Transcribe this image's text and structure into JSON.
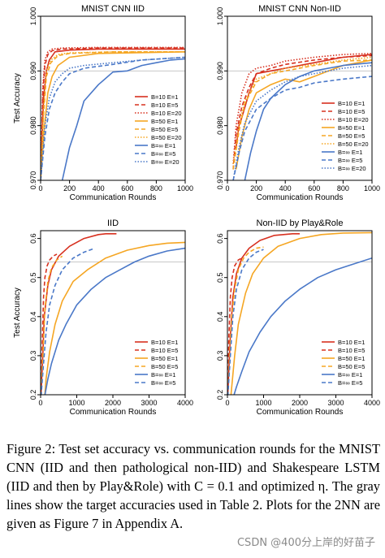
{
  "chart_data": [
    {
      "type": "line",
      "title": "MNIST CNN IID",
      "xlabel": "Communication Rounds",
      "ylabel": "Test Accuracy",
      "xlim": [
        0,
        1000
      ],
      "ylim": [
        0.97,
        1.0
      ],
      "xticks": [
        0,
        200,
        400,
        600,
        800,
        1000
      ],
      "yticks": [
        0.97,
        0.98,
        0.99,
        1.0
      ],
      "ytick_labels": [
        "0.970",
        "0.980",
        "0.990",
        "1.000"
      ],
      "target": 0.99,
      "legend_position": "center-right",
      "series": [
        {
          "name": "B=10 E=1",
          "color": "#d7301f",
          "dash": "solid",
          "x": [
            0,
            20,
            40,
            60,
            100,
            200,
            400,
            1000
          ],
          "y": [
            0.97,
            0.985,
            0.99,
            0.992,
            0.9935,
            0.9938,
            0.994,
            0.994
          ]
        },
        {
          "name": "B=10 E=5",
          "color": "#d7301f",
          "dash": "dashed",
          "x": [
            0,
            15,
            30,
            50,
            80,
            150,
            400,
            1000
          ],
          "y": [
            0.97,
            0.986,
            0.991,
            0.993,
            0.9937,
            0.994,
            0.9942,
            0.9942
          ]
        },
        {
          "name": "B=10 E=20",
          "color": "#d7301f",
          "dash": "dotted",
          "x": [
            0,
            15,
            30,
            50,
            80,
            150,
            400,
            1000
          ],
          "y": [
            0.97,
            0.987,
            0.992,
            0.9935,
            0.994,
            0.9942,
            0.9943,
            0.9943
          ]
        },
        {
          "name": "B=50 E=1",
          "color": "#f5a623",
          "dash": "solid",
          "x": [
            0,
            20,
            50,
            80,
            120,
            200,
            400,
            1000
          ],
          "y": [
            0.97,
            0.978,
            0.986,
            0.989,
            0.991,
            0.9925,
            0.9932,
            0.9935
          ]
        },
        {
          "name": "B=50 E=5",
          "color": "#f5a623",
          "dash": "dashed",
          "x": [
            0,
            20,
            40,
            70,
            120,
            200,
            500,
            1000
          ],
          "y": [
            0.97,
            0.982,
            0.989,
            0.9915,
            0.9928,
            0.9932,
            0.9935,
            0.9935
          ]
        },
        {
          "name": "B=50 E=20",
          "color": "#f5a623",
          "dash": "dotted",
          "x": [
            0,
            20,
            40,
            70,
            120,
            200,
            500,
            1000
          ],
          "y": [
            0.97,
            0.983,
            0.99,
            0.992,
            0.993,
            0.9933,
            0.9935,
            0.9935
          ]
        },
        {
          "name": "B=∞ E=1",
          "color": "#4a78c8",
          "dash": "solid",
          "x": [
            150,
            200,
            250,
            300,
            400,
            500,
            600,
            700,
            800,
            900,
            1000
          ],
          "y": [
            0.97,
            0.976,
            0.98,
            0.9845,
            0.9875,
            0.9898,
            0.99,
            0.991,
            0.9915,
            0.992,
            0.9922
          ]
        },
        {
          "name": "B=∞ E=5",
          "color": "#4a78c8",
          "dash": "dashed",
          "x": [
            0,
            30,
            60,
            100,
            150,
            200,
            300,
            500,
            700,
            1000
          ],
          "y": [
            0.97,
            0.978,
            0.983,
            0.986,
            0.988,
            0.9895,
            0.9905,
            0.9912,
            0.992,
            0.9925
          ]
        },
        {
          "name": "B=∞ E=20",
          "color": "#4a78c8",
          "dash": "dotted",
          "x": [
            0,
            30,
            60,
            100,
            150,
            200,
            300,
            500,
            700,
            1000
          ],
          "y": [
            0.97,
            0.98,
            0.985,
            0.988,
            0.9895,
            0.9905,
            0.991,
            0.9915,
            0.992,
            0.9925
          ]
        }
      ]
    },
    {
      "type": "line",
      "title": "MNIST CNN Non-IID",
      "xlabel": "Communication Rounds",
      "ylabel": "",
      "xlim": [
        0,
        1000
      ],
      "ylim": [
        0.97,
        1.0
      ],
      "xticks": [
        0,
        200,
        400,
        600,
        800,
        1000
      ],
      "yticks": [
        0.97,
        0.98,
        0.99,
        1.0
      ],
      "ytick_labels": [
        "0.970",
        "0.980",
        "0.990",
        "1.000"
      ],
      "target": 0.99,
      "legend_position": "bottom-right",
      "series": [
        {
          "name": "B=10 E=1",
          "color": "#d7301f",
          "dash": "solid",
          "x": [
            60,
            80,
            100,
            150,
            200,
            300,
            400,
            600,
            800,
            1000
          ],
          "y": [
            0.976,
            0.98,
            0.9815,
            0.986,
            0.9895,
            0.99,
            0.9905,
            0.9915,
            0.9925,
            0.993
          ]
        },
        {
          "name": "B=10 E=5",
          "color": "#d7301f",
          "dash": "dashed",
          "x": [
            40,
            60,
            100,
            150,
            200,
            300,
            400,
            600,
            800,
            1000
          ],
          "y": [
            0.972,
            0.9785,
            0.9835,
            0.987,
            0.9895,
            0.9905,
            0.9912,
            0.992,
            0.9925,
            0.9928
          ]
        },
        {
          "name": "B=10 E=20",
          "color": "#d7301f",
          "dash": "dotted",
          "x": [
            40,
            60,
            100,
            150,
            200,
            300,
            400,
            600,
            800,
            1000
          ],
          "y": [
            0.973,
            0.98,
            0.986,
            0.9895,
            0.9905,
            0.991,
            0.9918,
            0.9925,
            0.993,
            0.9932
          ]
        },
        {
          "name": "B=50 E=1",
          "color": "#f5a623",
          "dash": "solid",
          "x": [
            60,
            100,
            150,
            200,
            300,
            400,
            500,
            600,
            700,
            800,
            1000
          ],
          "y": [
            0.972,
            0.978,
            0.983,
            0.986,
            0.9875,
            0.9885,
            0.988,
            0.989,
            0.99,
            0.991,
            0.992
          ]
        },
        {
          "name": "B=50 E=5",
          "color": "#f5a623",
          "dash": "dashed",
          "x": [
            40,
            80,
            120,
            200,
            300,
            400,
            600,
            800,
            1000
          ],
          "y": [
            0.972,
            0.979,
            0.984,
            0.988,
            0.9895,
            0.99,
            0.991,
            0.9918,
            0.992
          ]
        },
        {
          "name": "B=50 E=20",
          "color": "#f5a623",
          "dash": "dotted",
          "x": [
            40,
            80,
            120,
            200,
            300,
            400,
            600,
            800,
            1000
          ],
          "y": [
            0.973,
            0.98,
            0.9845,
            0.9885,
            0.9895,
            0.9905,
            0.9912,
            0.992,
            0.9925
          ]
        },
        {
          "name": "B=∞ E=1",
          "color": "#4a78c8",
          "dash": "solid",
          "x": [
            120,
            160,
            200,
            250,
            300,
            400,
            500,
            600,
            800,
            1000
          ],
          "y": [
            0.97,
            0.975,
            0.979,
            0.983,
            0.985,
            0.9875,
            0.989,
            0.99,
            0.991,
            0.9915
          ]
        },
        {
          "name": "B=∞ E=5",
          "color": "#4a78c8",
          "dash": "dashed",
          "x": [
            40,
            80,
            120,
            200,
            300,
            400,
            500,
            600,
            800,
            1000
          ],
          "y": [
            0.97,
            0.975,
            0.979,
            0.983,
            0.985,
            0.9865,
            0.987,
            0.9878,
            0.9885,
            0.989
          ]
        },
        {
          "name": "B=∞ E=20",
          "color": "#4a78c8",
          "dash": "dotted",
          "x": [
            40,
            80,
            120,
            200,
            300,
            400,
            500,
            600,
            800,
            1000
          ],
          "y": [
            0.97,
            0.976,
            0.9805,
            0.9845,
            0.9865,
            0.988,
            0.989,
            0.9895,
            0.9905,
            0.991
          ]
        }
      ]
    },
    {
      "type": "line",
      "title": "IID",
      "xlabel": "Communication Rounds",
      "ylabel": "Test Accuracy",
      "xlim": [
        0,
        4000
      ],
      "ylim": [
        0.2,
        0.62
      ],
      "xticks": [
        0,
        1000,
        2000,
        3000,
        4000
      ],
      "yticks": [
        0.2,
        0.3,
        0.4,
        0.5,
        0.6
      ],
      "ytick_labels": [
        "0.2",
        "0.3",
        "0.4",
        "0.5",
        "0.6"
      ],
      "target": 0.54,
      "legend_position": "bottom-right",
      "series": [
        {
          "name": "B=10 E=1",
          "color": "#d7301f",
          "dash": "solid",
          "x": [
            0,
            60,
            100,
            200,
            300,
            500,
            800,
            1200,
            1600,
            1800,
            2100
          ],
          "y": [
            0.18,
            0.3,
            0.4,
            0.48,
            0.52,
            0.555,
            0.58,
            0.6,
            0.61,
            0.612,
            0.612
          ]
        },
        {
          "name": "B=10 E=5",
          "color": "#d7301f",
          "dash": "dashed",
          "x": [
            0,
            50,
            80,
            120,
            180,
            250,
            350,
            450
          ],
          "y": [
            0.18,
            0.35,
            0.45,
            0.5,
            0.53,
            0.545,
            0.555,
            0.56
          ]
        },
        {
          "name": "B=50 E=1",
          "color": "#f5a623",
          "dash": "solid",
          "x": [
            100,
            150,
            250,
            400,
            600,
            900,
            1300,
            1800,
            2400,
            3000,
            3500,
            4000
          ],
          "y": [
            0.18,
            0.24,
            0.31,
            0.38,
            0.44,
            0.49,
            0.52,
            0.55,
            0.57,
            0.582,
            0.588,
            0.59
          ]
        },
        {
          "name": "B=50 E=5",
          "color": "#f5a623",
          "dash": "dashed",
          "x": [
            0,
            60,
            120,
            200,
            300,
            450,
            600
          ],
          "y": [
            0.18,
            0.3,
            0.42,
            0.49,
            0.525,
            0.545,
            0.555
          ]
        },
        {
          "name": "B=∞ E=1",
          "color": "#4a78c8",
          "dash": "solid",
          "x": [
            100,
            200,
            300,
            500,
            700,
            1000,
            1400,
            1800,
            2200,
            2600,
            3000,
            3500,
            4000
          ],
          "y": [
            0.19,
            0.24,
            0.28,
            0.34,
            0.38,
            0.43,
            0.47,
            0.5,
            0.52,
            0.54,
            0.555,
            0.568,
            0.575
          ]
        },
        {
          "name": "B=∞ E=5",
          "color": "#4a78c8",
          "dash": "dashed",
          "x": [
            0,
            80,
            150,
            250,
            400,
            600,
            900,
            1200,
            1500
          ],
          "y": [
            0.18,
            0.28,
            0.36,
            0.43,
            0.48,
            0.52,
            0.55,
            0.565,
            0.575
          ]
        }
      ]
    },
    {
      "type": "line",
      "title": "Non-IID by Play&Role",
      "xlabel": "Communication Rounds",
      "ylabel": "",
      "xlim": [
        0,
        4000
      ],
      "ylim": [
        0.2,
        0.62
      ],
      "xticks": [
        0,
        1000,
        2000,
        3000,
        4000
      ],
      "yticks": [
        0.2,
        0.3,
        0.4,
        0.5,
        0.6
      ],
      "ytick_labels": [
        "0.2",
        "0.3",
        "0.4",
        "0.5",
        "0.6"
      ],
      "target": 0.54,
      "legend_position": "bottom-right",
      "series": [
        {
          "name": "B=10 E=1",
          "color": "#d7301f",
          "dash": "solid",
          "x": [
            0,
            80,
            150,
            250,
            400,
            600,
            900,
            1300,
            1800,
            2000
          ],
          "y": [
            0.18,
            0.35,
            0.45,
            0.51,
            0.55,
            0.575,
            0.595,
            0.608,
            0.612,
            0.612
          ]
        },
        {
          "name": "B=10 E=5",
          "color": "#d7301f",
          "dash": "dashed",
          "x": [
            0,
            40,
            80,
            130,
            200,
            300,
            400
          ],
          "y": [
            0.18,
            0.35,
            0.45,
            0.5,
            0.53,
            0.545,
            0.55
          ]
        },
        {
          "name": "B=50 E=1",
          "color": "#f5a623",
          "dash": "solid",
          "x": [
            100,
            200,
            300,
            500,
            700,
            1000,
            1400,
            2000,
            2600,
            3200,
            4000
          ],
          "y": [
            0.2,
            0.3,
            0.38,
            0.46,
            0.51,
            0.55,
            0.58,
            0.6,
            0.61,
            0.614,
            0.615
          ]
        },
        {
          "name": "B=50 E=5",
          "color": "#f5a623",
          "dash": "dashed",
          "x": [
            0,
            60,
            120,
            200,
            300,
            450,
            600,
            800,
            1000
          ],
          "y": [
            0.18,
            0.3,
            0.4,
            0.47,
            0.52,
            0.55,
            0.565,
            0.575,
            0.578
          ]
        },
        {
          "name": "B=∞ E=1",
          "color": "#4a78c8",
          "dash": "solid",
          "x": [
            150,
            250,
            400,
            600,
            900,
            1200,
            1600,
            2000,
            2500,
            3000,
            3500,
            4000
          ],
          "y": [
            0.19,
            0.22,
            0.26,
            0.31,
            0.36,
            0.4,
            0.44,
            0.47,
            0.5,
            0.52,
            0.535,
            0.55
          ]
        },
        {
          "name": "B=∞ E=5",
          "color": "#4a78c8",
          "dash": "dashed",
          "x": [
            0,
            80,
            150,
            250,
            400,
            600,
            800,
            1000
          ],
          "y": [
            0.18,
            0.3,
            0.4,
            0.47,
            0.52,
            0.55,
            0.565,
            0.572
          ]
        }
      ]
    }
  ],
  "caption": {
    "text": "Figure 2: Test set accuracy vs. communication rounds for the MNIST CNN (IID and then pathological non-IID) and Shakespeare LSTM (IID and then by Play&Role) with C = 0.1 and optimized η. The gray lines show the target accuracies used in Table 2. Plots for the 2NN are given as Figure 7 in Appendix A."
  },
  "watermark": "CSDN @400分上岸的好苗子"
}
